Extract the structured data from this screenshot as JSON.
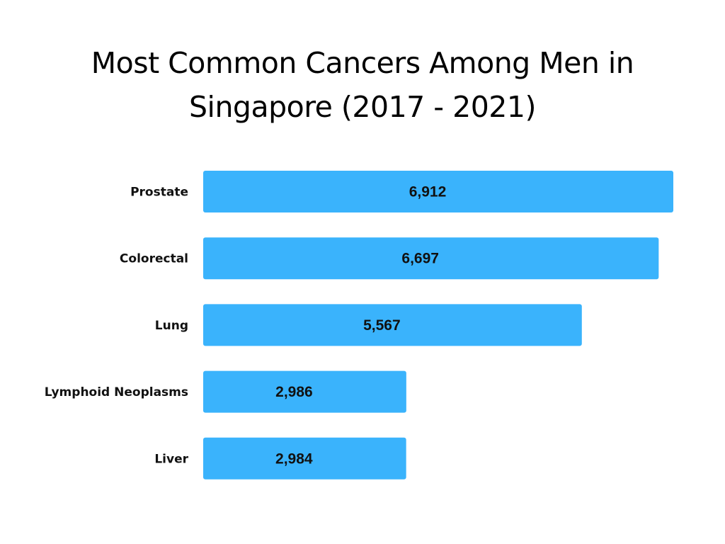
{
  "chart_data": {
    "type": "bar",
    "orientation": "horizontal",
    "title_lines": [
      "Most Common Cancers Among Men in",
      "Singapore (2017 - 2021)"
    ],
    "categories": [
      "Prostate",
      "Colorectal",
      "Lung",
      "Lymphoid Neoplasms",
      "Liver"
    ],
    "values": [
      6912,
      6697,
      5567,
      2986,
      2984
    ],
    "value_labels": [
      "6,912",
      "6,697",
      "5,567",
      "2,986",
      "2,984"
    ],
    "xlim": [
      0,
      6912
    ],
    "bar_color": "#3AB3FC",
    "grid": false,
    "legend": "none"
  }
}
